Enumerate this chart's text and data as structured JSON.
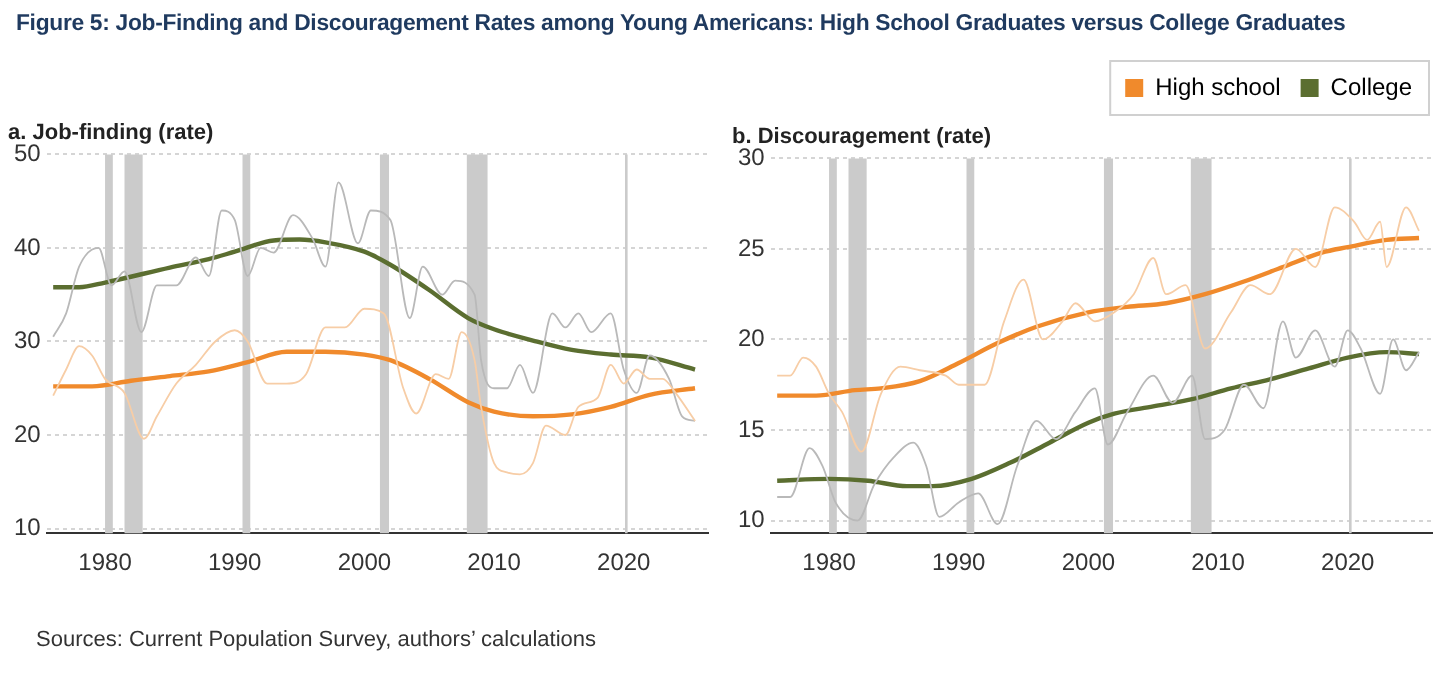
{
  "chart_data": [
    {
      "type": "line",
      "title": "Figure 5: Job-Finding and Discouragement Rates among Young Americans: High School Graduates versus College Graduates",
      "subtitle": "a. Job-finding (rate)",
      "annotations": [
        "Sources: Current Population Survey, authors’ calculations"
      ],
      "xlim": [
        1975.5,
        2026.5
      ],
      "xticks": [
        1980,
        1990,
        2000,
        2010,
        2020
      ],
      "ylim": [
        9.5,
        50
      ],
      "yticks": [
        10,
        20,
        30,
        40,
        50
      ],
      "grid": "y",
      "legend": false,
      "bands": [
        {
          "axis": "x",
          "from": 1980,
          "to": 1980.6,
          "color": "#cbcbcb"
        },
        {
          "axis": "x",
          "from": 1981.5,
          "to": 1982.9,
          "color": "#cbcbcb"
        },
        {
          "axis": "x",
          "from": 1990.6,
          "to": 1991.2,
          "color": "#cbcbcb"
        },
        {
          "axis": "x",
          "from": 2001.2,
          "to": 2001.9,
          "color": "#cbcbcb"
        },
        {
          "axis": "x",
          "from": 2007.9,
          "to": 2009.5,
          "color": "#cbcbcb"
        },
        {
          "axis": "x",
          "from": 2020.1,
          "to": 2020.3,
          "color": "#cbcbcb"
        }
      ],
      "series": [
        {
          "color": "#f7cda6",
          "x": [
            1976,
            1977,
            1978,
            1979,
            1980,
            1981.5,
            1983,
            1984,
            1985.5,
            1987,
            1988.5,
            1990,
            1991,
            1992.5,
            1994,
            1995.5,
            1997,
            1998.5,
            2000,
            2001.5,
            2003,
            2004,
            2005.5,
            2006.5,
            2007.5,
            2008.5,
            2009,
            2010,
            2011,
            2012,
            2013,
            2014,
            2015.5,
            2016.5,
            2018,
            2019,
            2020,
            2021,
            2022,
            2023,
            2024,
            2025.5
          ],
          "values": [
            24.2,
            27,
            29.5,
            28.5,
            26,
            24.5,
            19.6,
            22,
            25.5,
            27.5,
            30,
            31.2,
            30,
            25.5,
            25.5,
            26.5,
            31.5,
            31.5,
            33.5,
            33,
            25,
            22.3,
            26.5,
            26,
            31,
            28,
            23,
            17,
            16,
            15.8,
            17,
            21,
            20,
            23,
            24,
            27.5,
            25.5,
            27,
            26,
            26,
            24.5,
            21.5
          ]
        },
        {
          "color": "#b9b9b9",
          "x": [
            1976,
            1977,
            1978,
            1979.5,
            1980.5,
            1981.5,
            1982.8,
            1984,
            1985.5,
            1987,
            1988,
            1989,
            1990,
            1991,
            1992,
            1993,
            1994.5,
            1996,
            1997,
            1998,
            1999.5,
            2000.5,
            2002,
            2003.5,
            2004.5,
            2006,
            2007,
            2008.5,
            2009,
            2010,
            2011,
            2012,
            2013,
            2014.5,
            2015.5,
            2016.5,
            2017.5,
            2019,
            2020,
            2021,
            2022,
            2023.5,
            2024.5,
            2025.5
          ],
          "values": [
            30.5,
            33,
            38,
            40,
            36,
            37.5,
            31,
            36,
            36,
            39,
            37,
            44,
            43,
            37,
            40,
            39.5,
            43.5,
            41,
            38,
            47,
            40.5,
            44,
            43,
            32.5,
            38,
            35,
            36.5,
            35,
            28,
            25,
            25,
            27.5,
            24.5,
            33,
            31.5,
            33,
            31,
            33,
            27,
            24.5,
            28.5,
            26,
            22,
            21.5
          ]
        },
        {
          "color": "#f08a2c",
          "x": [
            1976,
            1979,
            1982,
            1985,
            1988,
            1991,
            1994,
            1997,
            2000,
            2002,
            2005,
            2008,
            2010,
            2013,
            2016,
            2019,
            2022,
            2025.5
          ],
          "values": [
            25.2,
            25.2,
            25.8,
            26.3,
            26.8,
            27.8,
            28.9,
            28.9,
            28.6,
            28,
            26,
            23.5,
            22.5,
            22,
            22.2,
            23,
            24.3,
            25
          ]
        },
        {
          "color": "#5b6e30",
          "x": [
            1976,
            1978,
            1980,
            1985,
            1988,
            1990,
            1993,
            1995,
            1997,
            2000,
            2002,
            2005,
            2008,
            2010,
            2013,
            2016,
            2019,
            2022,
            2025.5
          ],
          "values": [
            35.8,
            35.8,
            36.3,
            37.9,
            38.8,
            39.6,
            40.8,
            40.9,
            40.6,
            39.6,
            38.2,
            35.5,
            32.5,
            31.3,
            30.1,
            29.1,
            28.6,
            28.3,
            27
          ]
        }
      ]
    },
    {
      "type": "line",
      "title": "b. Discouragement (rate)",
      "xlim": [
        1975.5,
        2026.5
      ],
      "xticks": [
        1980,
        1990,
        2000,
        2010,
        2020
      ],
      "ylim": [
        9.3,
        30
      ],
      "yticks": [
        10,
        15,
        20,
        25,
        30
      ],
      "grid": "y",
      "legend": "top right",
      "bands": [
        {
          "axis": "x",
          "from": 1980,
          "to": 1980.6,
          "color": "#cbcbcb"
        },
        {
          "axis": "x",
          "from": 1981.5,
          "to": 1982.9,
          "color": "#cbcbcb"
        },
        {
          "axis": "x",
          "from": 1990.6,
          "to": 1991.2,
          "color": "#cbcbcb"
        },
        {
          "axis": "x",
          "from": 2001.2,
          "to": 2001.9,
          "color": "#cbcbcb"
        },
        {
          "axis": "x",
          "from": 2007.9,
          "to": 2009.5,
          "color": "#cbcbcb"
        },
        {
          "axis": "x",
          "from": 2020.1,
          "to": 2020.3,
          "color": "#cbcbcb"
        }
      ],
      "series": [
        {
          "color": "#f7cda6",
          "x": [
            1976,
            1977,
            1978,
            1979,
            1980,
            1981,
            1982.5,
            1984,
            1985.5,
            1987,
            1989,
            1990,
            1992,
            1993.5,
            1995,
            1996.5,
            1998,
            1999,
            2000.5,
            2002,
            2003.5,
            2005,
            2006,
            2007.5,
            2009,
            2011,
            2012.5,
            2014,
            2016,
            2017.5,
            2019,
            2020.5,
            2021.5,
            2022.5,
            2023,
            2024.5,
            2025.5
          ],
          "values": [
            18,
            18,
            19,
            18.5,
            17,
            16,
            13.8,
            17,
            18.5,
            18.3,
            18,
            17.5,
            17.5,
            21,
            23.3,
            20,
            21,
            22,
            21,
            21.5,
            22.5,
            24.5,
            22.5,
            23,
            19.5,
            21.5,
            23,
            22.5,
            25,
            24,
            27.3,
            26.5,
            25.5,
            26.5,
            24,
            27.3,
            26
          ]
        },
        {
          "color": "#b9b9b9",
          "x": [
            1976,
            1977,
            1978.5,
            1979.5,
            1980.5,
            1982.2,
            1983.5,
            1985,
            1986.5,
            1987.5,
            1988.5,
            1990,
            1991.5,
            1993,
            1994.5,
            1996,
            1997.5,
            1999,
            2000.5,
            2001.5,
            2003,
            2005,
            2006.5,
            2008,
            2009,
            2010.5,
            2012,
            2013.5,
            2015,
            2016,
            2017.5,
            2019,
            2020,
            2021,
            2022.5,
            2023.5,
            2024.5,
            2025.5
          ],
          "values": [
            11.3,
            11.3,
            14,
            13,
            11,
            10,
            12,
            13.5,
            14.3,
            13,
            10.2,
            11,
            11.5,
            9.8,
            13,
            15.5,
            14.5,
            16,
            17.3,
            14.2,
            16,
            18,
            16.5,
            18,
            14.5,
            15,
            17.5,
            16.2,
            21,
            19,
            20.5,
            18.5,
            20.5,
            19.5,
            17,
            20,
            18.3,
            19.3
          ]
        },
        {
          "name": "High school",
          "color": "#f08a2c",
          "x": [
            1976,
            1979,
            1982,
            1984,
            1987,
            1990,
            1993,
            1996,
            2000,
            2003,
            2006,
            2009,
            2012,
            2015,
            2018,
            2020,
            2023,
            2025.5
          ],
          "values": [
            16.9,
            16.9,
            17.2,
            17.3,
            17.7,
            18.7,
            19.8,
            20.7,
            21.5,
            21.8,
            22,
            22.5,
            23.2,
            24,
            24.8,
            25.1,
            25.5,
            25.6
          ]
        },
        {
          "name": "College",
          "color": "#5b6e30",
          "x": [
            1976,
            1980,
            1983,
            1986,
            1988,
            1991,
            1994,
            1997,
            2000,
            2002,
            2005,
            2008,
            2011,
            2014,
            2017,
            2020,
            2023,
            2025.5
          ],
          "values": [
            12.2,
            12.3,
            12.2,
            11.9,
            11.9,
            12.3,
            13.2,
            14.3,
            15.4,
            15.9,
            16.3,
            16.7,
            17.3,
            17.8,
            18.4,
            19,
            19.3,
            19.2
          ]
        }
      ]
    }
  ]
}
